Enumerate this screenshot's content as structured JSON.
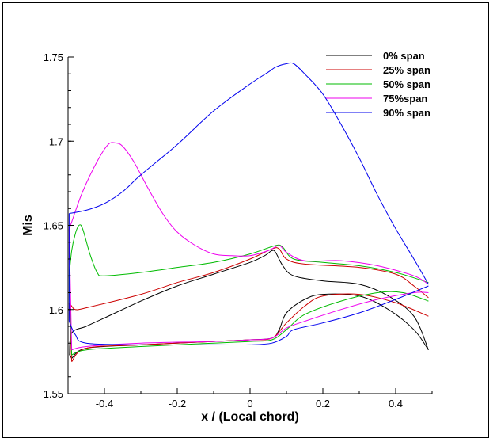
{
  "chart_data": {
    "type": "line",
    "title": "",
    "xlabel": "x / (Local chord)",
    "ylabel": "Mis",
    "xlim": [
      -0.5,
      0.5
    ],
    "ylim": [
      1.55,
      1.75
    ],
    "x_ticks": [
      -0.4,
      -0.2,
      0,
      0.2,
      0.4
    ],
    "y_ticks": [
      1.55,
      1.6,
      1.65,
      1.7,
      1.75
    ],
    "grid": false,
    "legend": "top-right",
    "series": [
      {
        "name": "0% span",
        "color": "#000000",
        "upper": [
          [
            -0.496,
            1.573
          ],
          [
            -0.49,
            1.586
          ],
          [
            -0.45,
            1.59
          ],
          [
            -0.4,
            1.595
          ],
          [
            -0.3,
            1.605
          ],
          [
            -0.2,
            1.614
          ],
          [
            -0.1,
            1.621
          ],
          [
            0,
            1.628
          ],
          [
            0.04,
            1.632
          ],
          [
            0.06,
            1.635
          ],
          [
            0.07,
            1.634
          ],
          [
            0.09,
            1.626
          ],
          [
            0.12,
            1.62
          ],
          [
            0.2,
            1.617
          ],
          [
            0.3,
            1.615
          ],
          [
            0.38,
            1.608
          ],
          [
            0.45,
            1.596
          ],
          [
            0.49,
            1.576
          ]
        ],
        "lower": [
          [
            -0.49,
            1.571
          ],
          [
            -0.45,
            1.577
          ],
          [
            -0.3,
            1.579
          ],
          [
            -0.1,
            1.581
          ],
          [
            0,
            1.582
          ],
          [
            0.06,
            1.583
          ],
          [
            0.08,
            1.588
          ],
          [
            0.1,
            1.598
          ],
          [
            0.15,
            1.606
          ],
          [
            0.2,
            1.609
          ],
          [
            0.3,
            1.608
          ],
          [
            0.38,
            1.6
          ],
          [
            0.45,
            1.588
          ],
          [
            0.49,
            1.576
          ]
        ]
      },
      {
        "name": "25% span",
        "color": "#cc0000",
        "upper": [
          [
            -0.497,
            1.604
          ],
          [
            -0.49,
            1.602
          ],
          [
            -0.48,
            1.6
          ],
          [
            -0.45,
            1.601
          ],
          [
            -0.3,
            1.609
          ],
          [
            -0.2,
            1.616
          ],
          [
            -0.1,
            1.622
          ],
          [
            0,
            1.63
          ],
          [
            0.06,
            1.636
          ],
          [
            0.08,
            1.636
          ],
          [
            0.1,
            1.63
          ],
          [
            0.15,
            1.627
          ],
          [
            0.3,
            1.625
          ],
          [
            0.4,
            1.621
          ],
          [
            0.45,
            1.614
          ],
          [
            0.49,
            1.607
          ]
        ],
        "lower": [
          [
            -0.49,
            1.569
          ],
          [
            -0.45,
            1.577
          ],
          [
            -0.3,
            1.579
          ],
          [
            -0.1,
            1.581
          ],
          [
            0,
            1.582
          ],
          [
            0.06,
            1.583
          ],
          [
            0.1,
            1.592
          ],
          [
            0.15,
            1.602
          ],
          [
            0.2,
            1.608
          ],
          [
            0.3,
            1.609
          ],
          [
            0.4,
            1.604
          ],
          [
            0.49,
            1.596
          ]
        ]
      },
      {
        "name": "50% span",
        "color": "#00bb00",
        "upper": [
          [
            -0.497,
            1.62
          ],
          [
            -0.49,
            1.635
          ],
          [
            -0.48,
            1.645
          ],
          [
            -0.47,
            1.65
          ],
          [
            -0.46,
            1.648
          ],
          [
            -0.44,
            1.633
          ],
          [
            -0.42,
            1.622
          ],
          [
            -0.4,
            1.62
          ],
          [
            -0.3,
            1.622
          ],
          [
            -0.2,
            1.625
          ],
          [
            -0.1,
            1.628
          ],
          [
            0,
            1.633
          ],
          [
            0.07,
            1.638
          ],
          [
            0.09,
            1.637
          ],
          [
            0.12,
            1.63
          ],
          [
            0.2,
            1.628
          ],
          [
            0.3,
            1.626
          ],
          [
            0.4,
            1.622
          ],
          [
            0.49,
            1.616
          ]
        ],
        "lower": [
          [
            -0.49,
            1.573
          ],
          [
            -0.45,
            1.576
          ],
          [
            -0.3,
            1.578
          ],
          [
            -0.1,
            1.58
          ],
          [
            0,
            1.581
          ],
          [
            0.06,
            1.582
          ],
          [
            0.1,
            1.588
          ],
          [
            0.15,
            1.597
          ],
          [
            0.25,
            1.605
          ],
          [
            0.35,
            1.61
          ],
          [
            0.42,
            1.61
          ],
          [
            0.49,
            1.605
          ]
        ]
      },
      {
        "name": "75%span",
        "color": "#ee00ee",
        "upper": [
          [
            -0.497,
            1.648
          ],
          [
            -0.49,
            1.652
          ],
          [
            -0.46,
            1.67
          ],
          [
            -0.42,
            1.688
          ],
          [
            -0.39,
            1.698
          ],
          [
            -0.37,
            1.699
          ],
          [
            -0.35,
            1.697
          ],
          [
            -0.32,
            1.688
          ],
          [
            -0.28,
            1.672
          ],
          [
            -0.24,
            1.657
          ],
          [
            -0.2,
            1.646
          ],
          [
            -0.15,
            1.638
          ],
          [
            -0.1,
            1.633
          ],
          [
            -0.05,
            1.632
          ],
          [
            0,
            1.632
          ],
          [
            0.05,
            1.635
          ],
          [
            0.08,
            1.638
          ],
          [
            0.1,
            1.634
          ],
          [
            0.15,
            1.629
          ],
          [
            0.25,
            1.629
          ],
          [
            0.35,
            1.626
          ],
          [
            0.45,
            1.62
          ],
          [
            0.49,
            1.615
          ]
        ],
        "lower": [
          [
            -0.49,
            1.576
          ],
          [
            -0.45,
            1.578
          ],
          [
            -0.3,
            1.58
          ],
          [
            -0.1,
            1.581
          ],
          [
            0,
            1.582
          ],
          [
            0.06,
            1.583
          ],
          [
            0.1,
            1.589
          ],
          [
            0.15,
            1.593
          ],
          [
            0.25,
            1.6
          ],
          [
            0.35,
            1.606
          ],
          [
            0.45,
            1.61
          ],
          [
            0.49,
            1.61
          ]
        ]
      },
      {
        "name": "90% span",
        "color": "#0000ee",
        "upper": [
          [
            -0.497,
            1.657
          ],
          [
            -0.45,
            1.659
          ],
          [
            -0.4,
            1.663
          ],
          [
            -0.35,
            1.67
          ],
          [
            -0.3,
            1.68
          ],
          [
            -0.2,
            1.698
          ],
          [
            -0.1,
            1.718
          ],
          [
            0,
            1.734
          ],
          [
            0.05,
            1.741
          ],
          [
            0.07,
            1.744
          ],
          [
            0.1,
            1.746
          ],
          [
            0.12,
            1.746
          ],
          [
            0.15,
            1.74
          ],
          [
            0.2,
            1.728
          ],
          [
            0.25,
            1.71
          ],
          [
            0.3,
            1.69
          ],
          [
            0.35,
            1.668
          ],
          [
            0.4,
            1.648
          ],
          [
            0.45,
            1.63
          ],
          [
            0.49,
            1.615
          ]
        ],
        "lower": [
          [
            -0.497,
            1.593
          ],
          [
            -0.48,
            1.585
          ],
          [
            -0.45,
            1.58
          ],
          [
            -0.3,
            1.579
          ],
          [
            -0.1,
            1.579
          ],
          [
            0,
            1.579
          ],
          [
            0.06,
            1.58
          ],
          [
            0.1,
            1.584
          ],
          [
            0.12,
            1.588
          ],
          [
            0.2,
            1.592
          ],
          [
            0.3,
            1.598
          ],
          [
            0.4,
            1.606
          ],
          [
            0.49,
            1.614
          ]
        ]
      }
    ]
  }
}
